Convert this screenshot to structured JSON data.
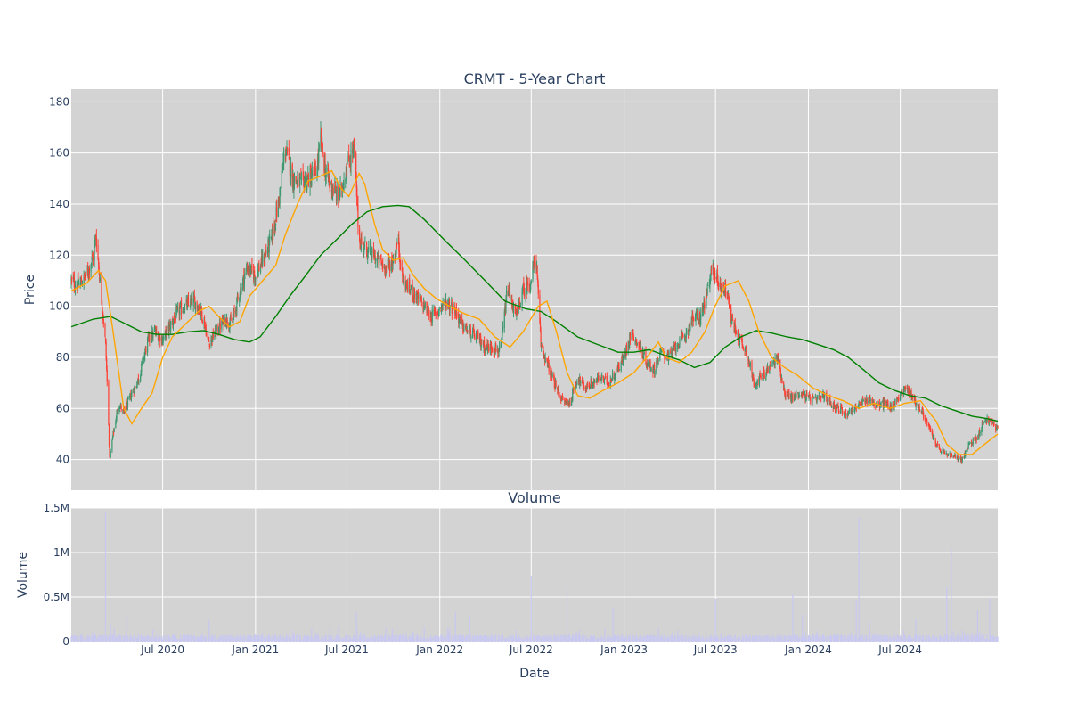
{
  "chart_data": [
    {
      "type": "candlestick",
      "title": "CRMT - 5-Year Chart",
      "ylabel": "Price",
      "ylim": [
        28,
        185
      ],
      "y_ticks": [
        40,
        60,
        80,
        100,
        120,
        140,
        160,
        180
      ],
      "x_range": [
        "2020-01-02",
        "2025-01-10"
      ],
      "grid": true,
      "colors": {
        "up": "#3d9970",
        "down": "#ff4136",
        "ma_short": "#ffa500",
        "ma_long": "#008000",
        "plot_bg": "#d3d3d3"
      },
      "price_path": [
        [
          "2020-01-02",
          110
        ],
        [
          "2020-01-15",
          108
        ],
        [
          "2020-02-01",
          112
        ],
        [
          "2020-02-15",
          120
        ],
        [
          "2020-02-20",
          128
        ],
        [
          "2020-03-01",
          105
        ],
        [
          "2020-03-10",
          85
        ],
        [
          "2020-03-15",
          60
        ],
        [
          "2020-03-18",
          40
        ],
        [
          "2020-03-25",
          50
        ],
        [
          "2020-04-05",
          62
        ],
        [
          "2020-04-15",
          58
        ],
        [
          "2020-05-01",
          66
        ],
        [
          "2020-05-15",
          72
        ],
        [
          "2020-06-01",
          86
        ],
        [
          "2020-06-15",
          90
        ],
        [
          "2020-07-01",
          87
        ],
        [
          "2020-07-15",
          92
        ],
        [
          "2020-08-01",
          98
        ],
        [
          "2020-08-15",
          100
        ],
        [
          "2020-09-01",
          102
        ],
        [
          "2020-09-15",
          98
        ],
        [
          "2020-10-01",
          86
        ],
        [
          "2020-10-15",
          90
        ],
        [
          "2020-11-01",
          95
        ],
        [
          "2020-11-15",
          93
        ],
        [
          "2020-12-01",
          106
        ],
        [
          "2020-12-15",
          115
        ],
        [
          "2021-01-01",
          112
        ],
        [
          "2021-01-15",
          118
        ],
        [
          "2021-02-01",
          126
        ],
        [
          "2021-02-15",
          140
        ],
        [
          "2021-03-01",
          162
        ],
        [
          "2021-03-15",
          150
        ],
        [
          "2021-04-01",
          148
        ],
        [
          "2021-04-15",
          150
        ],
        [
          "2021-05-01",
          152
        ],
        [
          "2021-05-10",
          165
        ],
        [
          "2021-05-20",
          152
        ],
        [
          "2021-06-01",
          147
        ],
        [
          "2021-06-15",
          142
        ],
        [
          "2021-07-01",
          155
        ],
        [
          "2021-07-15",
          162
        ],
        [
          "2021-07-25",
          126
        ],
        [
          "2021-08-15",
          121
        ],
        [
          "2021-09-01",
          118
        ],
        [
          "2021-09-15",
          115
        ],
        [
          "2021-10-01",
          118
        ],
        [
          "2021-10-10",
          126
        ],
        [
          "2021-10-20",
          110
        ],
        [
          "2021-11-01",
          107
        ],
        [
          "2021-11-15",
          104
        ],
        [
          "2021-12-01",
          100
        ],
        [
          "2021-12-15",
          96
        ],
        [
          "2022-01-01",
          99
        ],
        [
          "2022-01-15",
          102
        ],
        [
          "2022-02-01",
          98
        ],
        [
          "2022-02-15",
          92
        ],
        [
          "2022-03-01",
          90
        ],
        [
          "2022-03-15",
          88
        ],
        [
          "2022-04-01",
          84
        ],
        [
          "2022-04-15",
          84
        ],
        [
          "2022-05-01",
          82
        ],
        [
          "2022-05-15",
          107
        ],
        [
          "2022-06-01",
          96
        ],
        [
          "2022-06-15",
          106
        ],
        [
          "2022-07-01",
          110
        ],
        [
          "2022-07-10",
          121
        ],
        [
          "2022-07-20",
          85
        ],
        [
          "2022-08-01",
          78
        ],
        [
          "2022-08-15",
          70
        ],
        [
          "2022-09-01",
          63
        ],
        [
          "2022-09-15",
          62
        ],
        [
          "2022-10-01",
          72
        ],
        [
          "2022-10-15",
          68
        ],
        [
          "2022-11-01",
          70
        ],
        [
          "2022-11-15",
          72
        ],
        [
          "2022-12-01",
          70
        ],
        [
          "2022-12-15",
          74
        ],
        [
          "2023-01-01",
          80
        ],
        [
          "2023-01-15",
          90
        ],
        [
          "2023-02-01",
          84
        ],
        [
          "2023-02-15",
          78
        ],
        [
          "2023-03-01",
          75
        ],
        [
          "2023-03-15",
          82
        ],
        [
          "2023-04-01",
          80
        ],
        [
          "2023-04-15",
          85
        ],
        [
          "2023-05-01",
          88
        ],
        [
          "2023-05-15",
          95
        ],
        [
          "2023-06-01",
          96
        ],
        [
          "2023-06-15",
          105
        ],
        [
          "2023-06-25",
          115
        ],
        [
          "2023-07-10",
          108
        ],
        [
          "2023-07-25",
          106
        ],
        [
          "2023-08-01",
          95
        ],
        [
          "2023-08-15",
          88
        ],
        [
          "2023-09-01",
          82
        ],
        [
          "2023-09-15",
          70
        ],
        [
          "2023-10-01",
          72
        ],
        [
          "2023-10-15",
          76
        ],
        [
          "2023-11-01",
          80
        ],
        [
          "2023-11-15",
          66
        ],
        [
          "2023-12-01",
          64
        ],
        [
          "2023-12-15",
          66
        ],
        [
          "2024-01-01",
          64
        ],
        [
          "2024-01-15",
          63
        ],
        [
          "2024-02-01",
          65
        ],
        [
          "2024-02-15",
          62
        ],
        [
          "2024-03-01",
          60
        ],
        [
          "2024-03-15",
          58
        ],
        [
          "2024-04-01",
          60
        ],
        [
          "2024-04-15",
          62
        ],
        [
          "2024-05-01",
          64
        ],
        [
          "2024-05-15",
          61
        ],
        [
          "2024-06-01",
          62
        ],
        [
          "2024-06-15",
          60
        ],
        [
          "2024-07-01",
          66
        ],
        [
          "2024-07-15",
          68
        ],
        [
          "2024-08-01",
          62
        ],
        [
          "2024-08-15",
          58
        ],
        [
          "2024-09-01",
          50
        ],
        [
          "2024-09-15",
          44
        ],
        [
          "2024-10-01",
          42
        ],
        [
          "2024-10-15",
          41
        ],
        [
          "2024-11-01",
          40
        ],
        [
          "2024-11-15",
          46
        ],
        [
          "2024-12-01",
          49
        ],
        [
          "2024-12-15",
          56
        ],
        [
          "2025-01-01",
          54
        ],
        [
          "2025-01-10",
          52
        ]
      ],
      "ma_short_path": [
        [
          "2020-01-02",
          106
        ],
        [
          "2020-02-01",
          109
        ],
        [
          "2020-02-25",
          114
        ],
        [
          "2020-03-10",
          110
        ],
        [
          "2020-03-25",
          90
        ],
        [
          "2020-04-15",
          60
        ],
        [
          "2020-05-01",
          54
        ],
        [
          "2020-05-20",
          60
        ],
        [
          "2020-06-10",
          66
        ],
        [
          "2020-07-01",
          80
        ],
        [
          "2020-07-20",
          88
        ],
        [
          "2020-08-15",
          93
        ],
        [
          "2020-09-10",
          98
        ],
        [
          "2020-10-01",
          100
        ],
        [
          "2020-10-20",
          96
        ],
        [
          "2020-11-10",
          92
        ],
        [
          "2020-12-01",
          94
        ],
        [
          "2020-12-20",
          104
        ],
        [
          "2021-01-15",
          110
        ],
        [
          "2021-02-10",
          116
        ],
        [
          "2021-03-01",
          128
        ],
        [
          "2021-03-25",
          140
        ],
        [
          "2021-04-15",
          149
        ],
        [
          "2021-05-10",
          151
        ],
        [
          "2021-06-01",
          153
        ],
        [
          "2021-06-20",
          146
        ],
        [
          "2021-07-05",
          143
        ],
        [
          "2021-07-25",
          152
        ],
        [
          "2021-08-05",
          148
        ],
        [
          "2021-08-25",
          132
        ],
        [
          "2021-09-10",
          122
        ],
        [
          "2021-10-01",
          118
        ],
        [
          "2021-10-20",
          119
        ],
        [
          "2021-11-10",
          112
        ],
        [
          "2021-12-01",
          107
        ],
        [
          "2021-12-25",
          103
        ],
        [
          "2022-01-20",
          100
        ],
        [
          "2022-02-20",
          97
        ],
        [
          "2022-03-20",
          95
        ],
        [
          "2022-04-20",
          88
        ],
        [
          "2022-05-20",
          84
        ],
        [
          "2022-06-15",
          90
        ],
        [
          "2022-07-15",
          100
        ],
        [
          "2022-08-01",
          102
        ],
        [
          "2022-08-20",
          90
        ],
        [
          "2022-09-10",
          74
        ],
        [
          "2022-10-01",
          65
        ],
        [
          "2022-10-25",
          64
        ],
        [
          "2022-11-20",
          67
        ],
        [
          "2022-12-20",
          70
        ],
        [
          "2023-01-20",
          74
        ],
        [
          "2023-02-15",
          80
        ],
        [
          "2023-03-10",
          86
        ],
        [
          "2023-03-25",
          80
        ],
        [
          "2023-04-20",
          78
        ],
        [
          "2023-05-15",
          82
        ],
        [
          "2023-06-10",
          90
        ],
        [
          "2023-06-30",
          100
        ],
        [
          "2023-07-20",
          108
        ],
        [
          "2023-08-15",
          110
        ],
        [
          "2023-09-05",
          102
        ],
        [
          "2023-09-25",
          90
        ],
        [
          "2023-10-20",
          80
        ],
        [
          "2023-11-15",
          76
        ],
        [
          "2023-12-10",
          73
        ],
        [
          "2024-01-10",
          68
        ],
        [
          "2024-02-10",
          65
        ],
        [
          "2024-03-10",
          63
        ],
        [
          "2024-04-10",
          60
        ],
        [
          "2024-05-10",
          62
        ],
        [
          "2024-06-10",
          60
        ],
        [
          "2024-07-10",
          62
        ],
        [
          "2024-08-10",
          63
        ],
        [
          "2024-09-10",
          55
        ],
        [
          "2024-10-01",
          46
        ],
        [
          "2024-10-25",
          42
        ],
        [
          "2024-11-20",
          42
        ],
        [
          "2024-12-15",
          46
        ],
        [
          "2025-01-10",
          50
        ]
      ],
      "ma_long_path": [
        [
          "2020-01-02",
          92
        ],
        [
          "2020-02-15",
          95
        ],
        [
          "2020-03-20",
          96
        ],
        [
          "2020-04-20",
          93
        ],
        [
          "2020-05-20",
          90
        ],
        [
          "2020-06-20",
          89
        ],
        [
          "2020-07-20",
          89
        ],
        [
          "2020-08-20",
          90
        ],
        [
          "2020-09-20",
          90.5
        ],
        [
          "2020-10-20",
          89
        ],
        [
          "2020-11-20",
          87
        ],
        [
          "2020-12-20",
          86
        ],
        [
          "2021-01-10",
          88
        ],
        [
          "2021-02-10",
          96
        ],
        [
          "2021-03-10",
          104
        ],
        [
          "2021-04-10",
          112
        ],
        [
          "2021-05-10",
          120
        ],
        [
          "2021-06-10",
          126
        ],
        [
          "2021-07-10",
          132
        ],
        [
          "2021-08-10",
          137
        ],
        [
          "2021-09-10",
          139
        ],
        [
          "2021-10-10",
          139.5
        ],
        [
          "2021-11-01",
          139
        ],
        [
          "2021-12-01",
          134
        ],
        [
          "2022-01-10",
          126
        ],
        [
          "2022-02-20",
          118
        ],
        [
          "2022-04-01",
          110
        ],
        [
          "2022-05-10",
          102
        ],
        [
          "2022-06-20",
          99
        ],
        [
          "2022-07-20",
          98
        ],
        [
          "2022-08-20",
          94
        ],
        [
          "2022-10-01",
          88
        ],
        [
          "2022-11-10",
          85
        ],
        [
          "2022-12-20",
          82
        ],
        [
          "2023-01-20",
          82
        ],
        [
          "2023-02-20",
          83
        ],
        [
          "2023-03-20",
          81
        ],
        [
          "2023-04-20",
          79
        ],
        [
          "2023-05-20",
          76
        ],
        [
          "2023-06-20",
          78
        ],
        [
          "2023-07-20",
          84
        ],
        [
          "2023-08-20",
          88
        ],
        [
          "2023-09-20",
          90.5
        ],
        [
          "2023-10-20",
          89.5
        ],
        [
          "2023-11-20",
          88
        ],
        [
          "2023-12-20",
          87
        ],
        [
          "2024-01-20",
          85
        ],
        [
          "2024-02-20",
          83
        ],
        [
          "2024-03-20",
          80
        ],
        [
          "2024-04-20",
          75
        ],
        [
          "2024-05-20",
          70
        ],
        [
          "2024-06-20",
          67
        ],
        [
          "2024-07-20",
          65
        ],
        [
          "2024-08-20",
          64
        ],
        [
          "2024-09-20",
          61
        ],
        [
          "2024-10-20",
          59
        ],
        [
          "2024-11-20",
          57
        ],
        [
          "2024-12-20",
          56
        ],
        [
          "2025-01-10",
          55
        ]
      ]
    },
    {
      "type": "bar",
      "title": "Volume",
      "xlabel": "Date",
      "ylabel": "Volume",
      "ylim": [
        0,
        1500000
      ],
      "y_ticks": [
        0,
        500000,
        1000000,
        1500000
      ],
      "y_tick_labels": [
        "0",
        "0.5M",
        "1M",
        "1.5M"
      ],
      "x_tick_dates": [
        "2020-07-01",
        "2021-01-01",
        "2021-07-01",
        "2022-01-01",
        "2022-07-01",
        "2023-01-01",
        "2023-07-01",
        "2024-01-01",
        "2024-07-01"
      ],
      "x_tick_labels": [
        "Jul 2020",
        "Jan 2021",
        "Jul 2021",
        "Jan 2022",
        "Jul 2022",
        "Jan 2023",
        "Jul 2023",
        "Jan 2024",
        "Jul 2024"
      ],
      "colors": {
        "bar": "#c8c8f0",
        "plot_bg": "#d3d3d3"
      },
      "spikes": [
        [
          "2020-03-10",
          1460000
        ],
        [
          "2020-03-20",
          200000
        ],
        [
          "2020-04-20",
          290000
        ],
        [
          "2020-10-01",
          240000
        ],
        [
          "2021-01-15",
          100000
        ],
        [
          "2021-07-20",
          330000
        ],
        [
          "2021-12-01",
          160000
        ],
        [
          "2022-02-01",
          330000
        ],
        [
          "2022-03-01",
          290000
        ],
        [
          "2022-07-01",
          740000
        ],
        [
          "2022-09-10",
          620000
        ],
        [
          "2022-12-10",
          380000
        ],
        [
          "2023-07-01",
          480000
        ],
        [
          "2023-12-01",
          530000
        ],
        [
          "2023-12-20",
          300000
        ],
        [
          "2024-04-10",
          1390000
        ],
        [
          "2024-04-05",
          470000
        ],
        [
          "2024-05-01",
          230000
        ],
        [
          "2024-08-01",
          260000
        ],
        [
          "2024-10-01",
          610000
        ],
        [
          "2024-10-10",
          1040000
        ],
        [
          "2024-12-01",
          360000
        ],
        [
          "2024-12-25",
          480000
        ]
      ]
    }
  ]
}
